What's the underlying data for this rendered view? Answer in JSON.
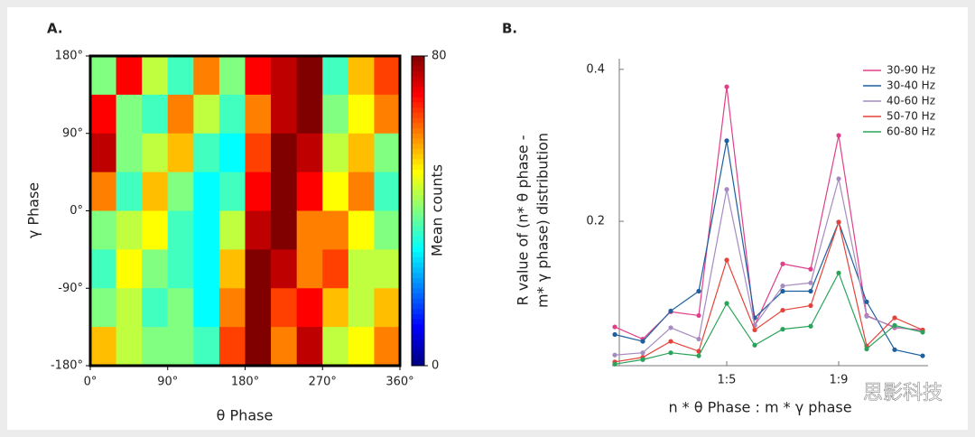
{
  "chart_data": [
    {
      "type": "heatmap",
      "panel_label": "A.",
      "x_label": "θ Phase",
      "y_label": "γ Phase",
      "xlim": [
        0,
        360
      ],
      "ylim": [
        -180,
        180
      ],
      "xticks": [
        {
          "value": 0,
          "label": "0°"
        },
        {
          "value": 90,
          "label": "90°"
        },
        {
          "value": 180,
          "label": "180°"
        },
        {
          "value": 270,
          "label": "270°"
        },
        {
          "value": 360,
          "label": "360°"
        }
      ],
      "yticks": [
        {
          "value": 180,
          "label": "180°"
        },
        {
          "value": 90,
          "label": "90°"
        },
        {
          "value": 0,
          "label": "0°"
        },
        {
          "value": -90,
          "label": "-90°"
        },
        {
          "value": -180,
          "label": "-180°"
        }
      ],
      "z": [
        [
          40,
          70,
          45,
          35,
          60,
          40,
          70,
          75,
          80,
          35,
          55,
          65
        ],
        [
          70,
          40,
          35,
          60,
          45,
          35,
          60,
          75,
          80,
          40,
          50,
          60
        ],
        [
          75,
          40,
          45,
          55,
          35,
          30,
          65,
          80,
          75,
          45,
          55,
          40
        ],
        [
          60,
          35,
          55,
          40,
          30,
          35,
          70,
          80,
          70,
          50,
          60,
          35
        ],
        [
          40,
          45,
          50,
          35,
          30,
          45,
          75,
          80,
          60,
          60,
          50,
          40
        ],
        [
          35,
          50,
          40,
          35,
          30,
          55,
          80,
          75,
          60,
          65,
          45,
          45
        ],
        [
          40,
          45,
          35,
          40,
          30,
          60,
          80,
          65,
          70,
          55,
          45,
          55
        ],
        [
          55,
          45,
          40,
          40,
          35,
          65,
          80,
          60,
          75,
          45,
          50,
          60
        ]
      ],
      "zlim": [
        0,
        80
      ],
      "colorbar_ticks": [
        0,
        80
      ],
      "colorbar_label": "Mean counts"
    },
    {
      "type": "line",
      "panel_label": "B.",
      "x_label": "n * θ Phase : m * γ phase",
      "y_label": [
        "R value of (n* θ phase -",
        "m* γ phase) distribution"
      ],
      "categories": [
        null,
        null,
        null,
        null,
        "1:5",
        null,
        null,
        null,
        "1:9",
        null,
        null,
        null
      ],
      "ylim": [
        0.01,
        0.414
      ],
      "yticks": [
        0.2,
        0.4
      ],
      "legend": "upper right",
      "series": [
        {
          "name": "30-90 Hz",
          "color": "#e0408a",
          "values": [
            0.061,
            0.045,
            0.081,
            0.076,
            0.377,
            0.063,
            0.144,
            0.137,
            0.313,
            0.076,
            0.06,
            0.057
          ]
        },
        {
          "name": "30-40 Hz",
          "color": "#1f5f9e",
          "values": [
            0.051,
            0.042,
            0.082,
            0.108,
            0.306,
            0.073,
            0.108,
            0.108,
            0.199,
            0.094,
            0.031,
            0.023
          ]
        },
        {
          "name": "40-60 Hz",
          "color": "#a58bc0",
          "values": [
            0.024,
            0.027,
            0.06,
            0.045,
            0.242,
            0.063,
            0.115,
            0.119,
            0.256,
            0.075,
            0.061,
            0.055
          ]
        },
        {
          "name": "50-70 Hz",
          "color": "#e3433a",
          "values": [
            0.015,
            0.021,
            0.042,
            0.029,
            0.149,
            0.057,
            0.083,
            0.089,
            0.199,
            0.036,
            0.073,
            0.057
          ]
        },
        {
          "name": "60-80 Hz",
          "color": "#2aa35a",
          "values": [
            0.012,
            0.018,
            0.027,
            0.023,
            0.092,
            0.037,
            0.058,
            0.062,
            0.132,
            0.032,
            0.063,
            0.054
          ]
        }
      ]
    }
  ],
  "watermark": "思影科技"
}
